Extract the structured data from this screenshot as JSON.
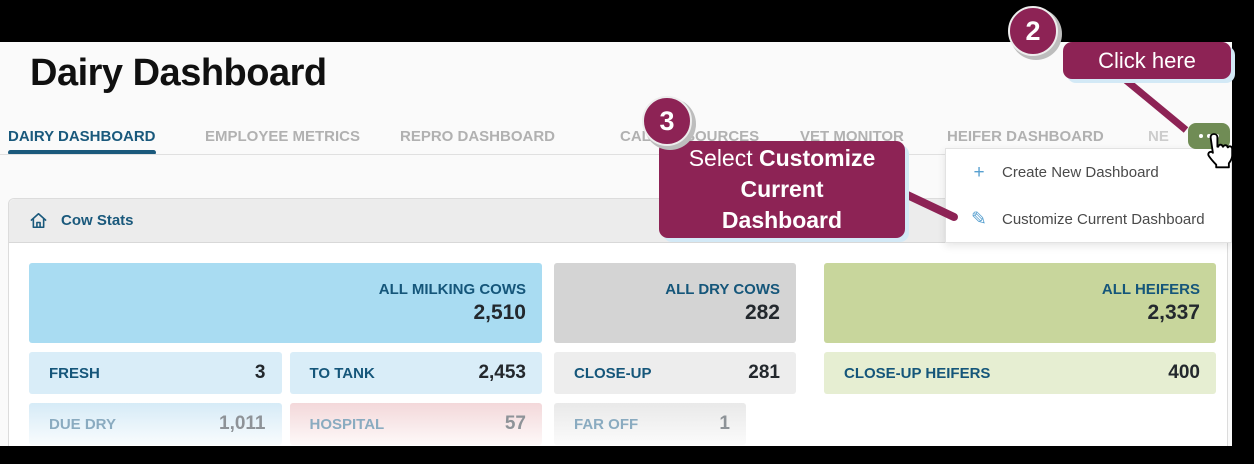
{
  "window": {
    "title": "Dairy Dashboard"
  },
  "colors": {
    "accent_blue": "#1a597c",
    "annotation_maroon": "#8d2355",
    "annotation_shadow_blue": "#d3e9f6",
    "more_button_green": "#708c55",
    "menu_icon_blue": "#58a0d0"
  },
  "tabs": [
    {
      "label": "DAIRY DASHBOARD",
      "active": true
    },
    {
      "label": "EMPLOYEE METRICS",
      "active": false
    },
    {
      "label": "REPRO DASHBOARD",
      "active": false
    },
    {
      "label": "CALF RESOURCES",
      "active": false
    },
    {
      "label": "VET MONITOR",
      "active": false
    },
    {
      "label": "HEIFER DASHBOARD",
      "active": false
    },
    {
      "label": "NE",
      "active": false,
      "clipped": true
    }
  ],
  "more_button": {
    "icon": "ellipsis-icon"
  },
  "menu": {
    "items": [
      {
        "icon": "plus-icon",
        "label": "Create New Dashboard"
      },
      {
        "icon": "pencil-icon",
        "label": "Customize Current Dashboard"
      }
    ]
  },
  "cow_stats": {
    "icon": "home-icon",
    "title": "Cow Stats",
    "columns": [
      {
        "header": {
          "label": "ALL MILKING COWS",
          "value": "2,510",
          "bg": "#a9dcf2"
        },
        "rows": [
          [
            {
              "label": "FRESH",
              "value": "3",
              "bg": "#d9edf8"
            },
            {
              "label": "TO TANK",
              "value": "2,453",
              "bg": "#d9edf8"
            }
          ],
          [
            {
              "label": "DUE DRY",
              "value": "1,011",
              "bg": "fade-blue",
              "faded": true
            },
            {
              "label": "HOSPITAL",
              "value": "57",
              "bg": "fade-pink",
              "faded": true
            }
          ]
        ]
      },
      {
        "header": {
          "label": "ALL DRY COWS",
          "value": "282",
          "bg": "#d4d4d4"
        },
        "rows": [
          [
            {
              "label": "CLOSE-UP",
              "value": "281",
              "bg": "#ededed"
            }
          ],
          [
            {
              "label": "FAR OFF",
              "value": "1",
              "bg": "fade-gray",
              "faded": true,
              "narrow": true
            }
          ]
        ]
      },
      {
        "header": {
          "label": "ALL HEIFERS",
          "value": "2,337",
          "bg": "#c8d69c"
        },
        "rows": [
          [
            {
              "label": "CLOSE-UP HEIFERS",
              "value": "400",
              "bg": "#e6eed2"
            }
          ]
        ]
      }
    ]
  },
  "annotations": {
    "step2": {
      "number": "2",
      "label": "Click here"
    },
    "step3": {
      "number": "3",
      "lines": [
        {
          "normal": "Select ",
          "bold": "Customize"
        },
        {
          "normal": "",
          "bold": "Current"
        },
        {
          "normal": "",
          "bold": "Dashboard"
        }
      ]
    }
  }
}
